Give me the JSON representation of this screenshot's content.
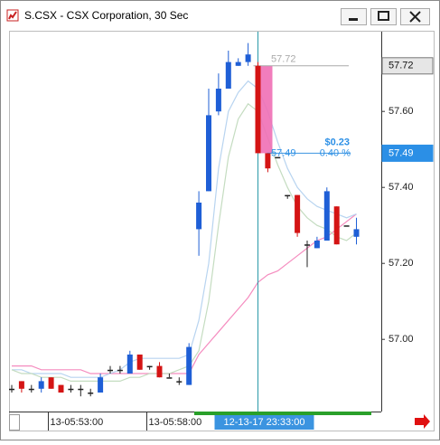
{
  "window": {
    "title": "S.CSX - CSX Corporation, 30 Sec"
  },
  "chart_data": {
    "type": "candlestick",
    "categories": [
      null,
      null,
      null,
      null,
      null,
      "13-05:53:00",
      null,
      null,
      null,
      null,
      null,
      null,
      null,
      null,
      null,
      "13-05:58:00",
      null,
      null,
      null,
      null,
      null,
      null,
      null,
      null,
      null,
      "12-13-17 23:33:00",
      null,
      null,
      null,
      null,
      null,
      null,
      null,
      null,
      null,
      null
    ],
    "crosshair_category": 25,
    "open": [
      56.87,
      56.89,
      56.87,
      56.87,
      56.9,
      56.88,
      56.87,
      56.87,
      56.86,
      56.86,
      56.92,
      56.92,
      56.91,
      56.96,
      56.93,
      56.93,
      56.9,
      56.89,
      56.88,
      57.29,
      57.39,
      57.6,
      57.66,
      57.72,
      57.73,
      57.72,
      57.49,
      57.48,
      57.38,
      57.38,
      57.25,
      57.24,
      57.26,
      57.35,
      57.3,
      57.27
    ],
    "high": [
      56.88,
      56.89,
      56.88,
      56.9,
      56.9,
      56.88,
      56.88,
      56.88,
      56.87,
      56.91,
      56.93,
      56.93,
      56.97,
      56.96,
      56.93,
      56.94,
      56.91,
      56.9,
      56.99,
      57.39,
      57.66,
      57.7,
      57.76,
      57.74,
      57.78,
      57.73,
      57.49,
      57.48,
      57.38,
      57.38,
      57.26,
      57.27,
      57.4,
      57.35,
      57.3,
      57.32
    ],
    "low": [
      56.86,
      56.86,
      56.86,
      56.86,
      56.87,
      56.86,
      56.86,
      56.85,
      56.85,
      56.86,
      56.91,
      56.91,
      56.91,
      56.92,
      56.92,
      56.9,
      56.9,
      56.88,
      56.88,
      57.22,
      57.39,
      57.59,
      57.66,
      57.72,
      57.72,
      57.49,
      57.44,
      57.48,
      57.37,
      57.27,
      57.19,
      57.24,
      57.26,
      57.25,
      57.3,
      57.25
    ],
    "close": [
      56.87,
      56.87,
      56.87,
      56.89,
      56.87,
      56.86,
      56.87,
      56.87,
      56.86,
      56.9,
      56.92,
      56.92,
      56.96,
      56.92,
      56.93,
      56.9,
      56.9,
      56.89,
      56.98,
      57.36,
      57.59,
      57.66,
      57.73,
      57.73,
      57.75,
      57.49,
      57.45,
      57.48,
      57.38,
      57.28,
      57.25,
      57.26,
      57.39,
      57.25,
      57.3,
      57.29
    ],
    "up_color": "#1f5fd6",
    "down_color": "#d41414",
    "flat_color": "#222222",
    "overlays": [
      {
        "color": "#f58cbf",
        "values": [
          56.93,
          56.93,
          56.93,
          56.92,
          56.92,
          56.92,
          56.92,
          56.92,
          56.91,
          56.91,
          56.91,
          56.91,
          56.91,
          56.91,
          56.91,
          56.91,
          56.91,
          56.91,
          56.91,
          56.96,
          56.99,
          57.02,
          57.05,
          57.08,
          57.11,
          57.15,
          57.17,
          57.18,
          57.2,
          57.22,
          57.24,
          57.26,
          57.27,
          57.29,
          57.31,
          57.33
        ]
      },
      {
        "color": "#b8d4f0",
        "values": [
          56.92,
          56.92,
          56.91,
          56.91,
          56.91,
          56.91,
          56.9,
          56.9,
          56.9,
          56.9,
          56.91,
          56.92,
          56.94,
          56.95,
          56.95,
          56.95,
          56.95,
          56.95,
          56.96,
          57.05,
          57.2,
          57.45,
          57.6,
          57.65,
          57.68,
          57.66,
          57.6,
          57.52,
          57.45,
          57.4,
          57.37,
          57.35,
          57.34,
          57.33,
          57.32,
          57.33
        ]
      },
      {
        "color": "#c4dcc0",
        "values": [
          56.92,
          56.91,
          56.91,
          56.9,
          56.9,
          56.9,
          56.89,
          56.89,
          56.89,
          56.89,
          56.89,
          56.89,
          56.9,
          56.9,
          56.91,
          56.91,
          56.91,
          56.92,
          56.93,
          56.97,
          57.1,
          57.3,
          57.48,
          57.58,
          57.62,
          57.6,
          57.53,
          57.46,
          57.4,
          57.35,
          57.32,
          57.3,
          57.29,
          57.27,
          57.26,
          57.28
        ]
      }
    ],
    "ylim": [
      56.81,
      57.81
    ],
    "yticks": [
      {
        "value": 57.0,
        "label": "57.00"
      },
      {
        "value": 57.2,
        "label": "57.20"
      },
      {
        "value": 57.4,
        "label": "57.40"
      },
      {
        "value": 57.6,
        "label": "57.60"
      }
    ],
    "price_markers": [
      {
        "value": 57.72,
        "color": "#e6e6e6"
      },
      {
        "value": 57.49,
        "color": "#2b8fe6"
      }
    ],
    "measure": {
      "from": 57.72,
      "to": 57.49,
      "change": "$0.23",
      "percent": "0.40 %"
    }
  }
}
